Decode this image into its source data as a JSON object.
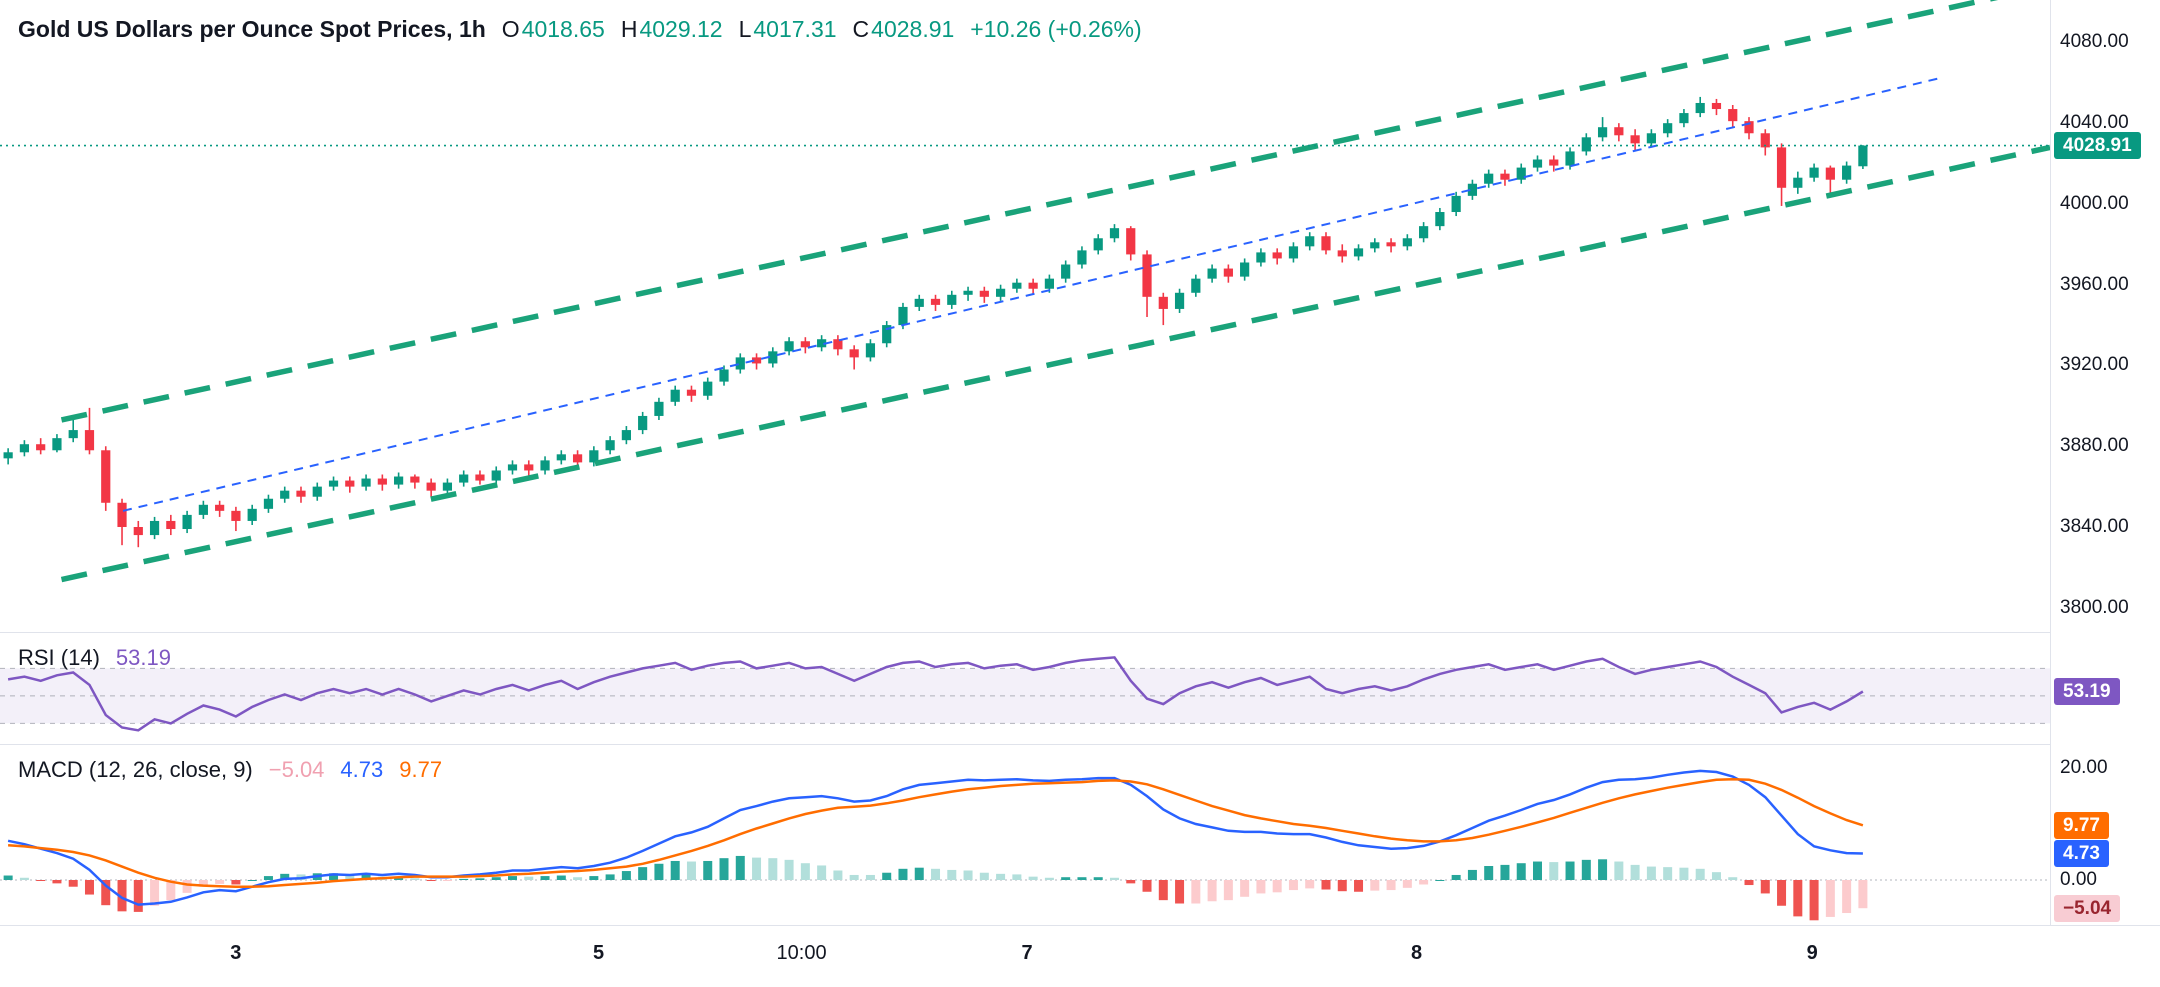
{
  "header": {
    "title": "Gold US Dollars per Ounce Spot Prices, 1h",
    "ohlc": {
      "open_label": "O",
      "open": "4018.65",
      "high_label": "H",
      "high": "4029.12",
      "low_label": "L",
      "low": "4017.31",
      "close_label": "C",
      "close": "4028.91",
      "change": "+10.26 (+0.26%)"
    }
  },
  "rsi_legend": {
    "label": "RSI (14)",
    "value": "53.19"
  },
  "macd_legend": {
    "label": "MACD (12, 26, close, 9)",
    "hist": "−5.04",
    "macd": "4.73",
    "signal": "9.77"
  },
  "price_axis": {
    "ticks": [
      {
        "label": "4080.00",
        "price": 4080
      },
      {
        "label": "4040.00",
        "price": 4040
      },
      {
        "label": "4000.00",
        "price": 4000
      },
      {
        "label": "3960.00",
        "price": 3960
      },
      {
        "label": "3920.00",
        "price": 3920
      },
      {
        "label": "3880.00",
        "price": 3880
      },
      {
        "label": "3840.00",
        "price": 3840
      },
      {
        "label": "3800.00",
        "price": 3800
      }
    ],
    "badge": {
      "label": "4028.91",
      "value": 4028.91,
      "bg": "#089981",
      "fg": "#ffffff"
    }
  },
  "rsi_axis": {
    "badge": {
      "label": "53.19",
      "value": 53.19,
      "bg": "#7e57c2",
      "fg": "#ffffff"
    }
  },
  "macd_axis": {
    "ticks": [
      {
        "label": "20.00",
        "value": 20
      },
      {
        "label": "0.00",
        "value": 0
      }
    ],
    "badges": [
      {
        "label": "9.77",
        "value": 9.77,
        "bg": "#ff6d00",
        "fg": "#ffffff"
      },
      {
        "label": "4.73",
        "value": 4.73,
        "bg": "#2962ff",
        "fg": "#ffffff"
      },
      {
        "label": "−5.04",
        "value": -5.04,
        "bg": "#f8ccd3",
        "fg": "#99252f"
      }
    ]
  },
  "time_axis": {
    "labels": [
      {
        "text": "3",
        "xf": 0.115,
        "strong": true
      },
      {
        "text": "5",
        "xf": 0.292,
        "strong": true
      },
      {
        "text": "10:00",
        "xf": 0.391,
        "strong": false
      },
      {
        "text": "7",
        "xf": 0.501,
        "strong": true
      },
      {
        "text": "8",
        "xf": 0.691,
        "strong": true
      },
      {
        "text": "9",
        "xf": 0.884,
        "strong": true
      }
    ]
  },
  "colors": {
    "up": "#089981",
    "down": "#f23645",
    "channel": "#1aa37a",
    "trend": "#2962ff",
    "last_price": "#089981",
    "rsi_line": "#7e57c2",
    "rsi_band": "rgba(126,87,194,0.09)",
    "rsi_level": "#787b86",
    "macd_line": "#2962ff",
    "macd_signal": "#ff6d00",
    "hist_up": "#26a69a",
    "hist_up_fade": "#b2dfdb",
    "hist_down": "#ef5350",
    "hist_down_fade": "#fccbcd",
    "separator": "#e0e3eb",
    "text": "#131722"
  },
  "chart_data": [
    {
      "type": "candlestick",
      "title": "Gold US Dollars per Ounce Spot Prices, 1h",
      "last": {
        "open": 4018.65,
        "high": 4029.12,
        "low": 4017.31,
        "close": 4028.91,
        "change": 10.26,
        "change_pct": 0.26
      },
      "ylim": [
        3788,
        4101
      ],
      "y_ticks": [
        4080,
        4040,
        4000,
        3960,
        3920,
        3880,
        3840,
        3800
      ],
      "candles": [
        [
          3874,
          3879,
          3871,
          3877
        ],
        [
          3877,
          3883,
          3875,
          3881
        ],
        [
          3881,
          3884,
          3876,
          3878
        ],
        [
          3878,
          3886,
          3877,
          3884
        ],
        [
          3884,
          3893,
          3882,
          3888
        ],
        [
          3888,
          3899,
          3876,
          3878
        ],
        [
          3878,
          3880,
          3848,
          3852
        ],
        [
          3852,
          3854,
          3831,
          3840
        ],
        [
          3840,
          3843,
          3830,
          3836
        ],
        [
          3836,
          3845,
          3834,
          3843
        ],
        [
          3843,
          3846,
          3836,
          3839
        ],
        [
          3839,
          3848,
          3837,
          3846
        ],
        [
          3846,
          3853,
          3844,
          3851
        ],
        [
          3851,
          3853,
          3845,
          3848
        ],
        [
          3848,
          3850,
          3838,
          3843
        ],
        [
          3843,
          3851,
          3841,
          3849
        ],
        [
          3849,
          3856,
          3847,
          3854
        ],
        [
          3854,
          3860,
          3852,
          3858
        ],
        [
          3858,
          3860,
          3852,
          3855
        ],
        [
          3855,
          3862,
          3853,
          3860
        ],
        [
          3860,
          3865,
          3858,
          3863
        ],
        [
          3863,
          3865,
          3857,
          3860
        ],
        [
          3860,
          3866,
          3858,
          3864
        ],
        [
          3864,
          3866,
          3858,
          3861
        ],
        [
          3861,
          3867,
          3859,
          3865
        ],
        [
          3865,
          3866,
          3859,
          3862
        ],
        [
          3862,
          3864,
          3855,
          3858
        ],
        [
          3858,
          3864,
          3856,
          3862
        ],
        [
          3862,
          3868,
          3860,
          3866
        ],
        [
          3866,
          3868,
          3861,
          3863
        ],
        [
          3863,
          3870,
          3861,
          3868
        ],
        [
          3868,
          3873,
          3866,
          3871
        ],
        [
          3871,
          3873,
          3865,
          3868
        ],
        [
          3868,
          3875,
          3866,
          3873
        ],
        [
          3873,
          3878,
          3871,
          3876
        ],
        [
          3876,
          3878,
          3869,
          3872
        ],
        [
          3872,
          3880,
          3870,
          3878
        ],
        [
          3878,
          3885,
          3876,
          3883
        ],
        [
          3883,
          3890,
          3881,
          3888
        ],
        [
          3888,
          3897,
          3886,
          3895
        ],
        [
          3895,
          3904,
          3893,
          3902
        ],
        [
          3902,
          3910,
          3900,
          3908
        ],
        [
          3908,
          3910,
          3902,
          3905
        ],
        [
          3905,
          3914,
          3903,
          3912
        ],
        [
          3912,
          3920,
          3910,
          3918
        ],
        [
          3918,
          3926,
          3916,
          3924
        ],
        [
          3924,
          3926,
          3918,
          3921
        ],
        [
          3921,
          3929,
          3919,
          3927
        ],
        [
          3927,
          3934,
          3925,
          3932
        ],
        [
          3932,
          3934,
          3926,
          3929
        ],
        [
          3929,
          3935,
          3927,
          3933
        ],
        [
          3933,
          3935,
          3925,
          3928
        ],
        [
          3928,
          3930,
          3918,
          3924
        ],
        [
          3924,
          3933,
          3922,
          3931
        ],
        [
          3931,
          3942,
          3929,
          3940
        ],
        [
          3940,
          3951,
          3938,
          3949
        ],
        [
          3949,
          3955,
          3947,
          3953
        ],
        [
          3953,
          3955,
          3947,
          3950
        ],
        [
          3950,
          3957,
          3948,
          3955
        ],
        [
          3955,
          3959,
          3952,
          3957
        ],
        [
          3957,
          3959,
          3951,
          3954
        ],
        [
          3954,
          3960,
          3952,
          3958
        ],
        [
          3958,
          3963,
          3956,
          3961
        ],
        [
          3961,
          3963,
          3955,
          3958
        ],
        [
          3958,
          3965,
          3956,
          3963
        ],
        [
          3963,
          3972,
          3961,
          3970
        ],
        [
          3970,
          3979,
          3968,
          3977
        ],
        [
          3977,
          3985,
          3975,
          3983
        ],
        [
          3983,
          3990,
          3981,
          3988
        ],
        [
          3988,
          3989,
          3972,
          3975
        ],
        [
          3975,
          3977,
          3944,
          3954
        ],
        [
          3954,
          3956,
          3940,
          3948
        ],
        [
          3948,
          3958,
          3946,
          3956
        ],
        [
          3956,
          3965,
          3954,
          3963
        ],
        [
          3963,
          3970,
          3961,
          3968
        ],
        [
          3968,
          3970,
          3961,
          3964
        ],
        [
          3964,
          3973,
          3962,
          3971
        ],
        [
          3971,
          3978,
          3969,
          3976
        ],
        [
          3976,
          3978,
          3970,
          3973
        ],
        [
          3973,
          3981,
          3971,
          3979
        ],
        [
          3979,
          3986,
          3977,
          3984
        ],
        [
          3984,
          3986,
          3975,
          3977
        ],
        [
          3977,
          3980,
          3971,
          3974
        ],
        [
          3974,
          3980,
          3972,
          3978
        ],
        [
          3978,
          3983,
          3976,
          3981
        ],
        [
          3981,
          3983,
          3976,
          3979
        ],
        [
          3979,
          3985,
          3977,
          3983
        ],
        [
          3983,
          3991,
          3981,
          3989
        ],
        [
          3989,
          3998,
          3987,
          3996
        ],
        [
          3996,
          4006,
          3994,
          4004
        ],
        [
          4004,
          4012,
          4002,
          4010
        ],
        [
          4010,
          4017,
          4008,
          4015
        ],
        [
          4015,
          4017,
          4009,
          4012
        ],
        [
          4012,
          4020,
          4010,
          4018
        ],
        [
          4018,
          4024,
          4016,
          4022
        ],
        [
          4022,
          4024,
          4016,
          4019
        ],
        [
          4019,
          4028,
          4017,
          4026
        ],
        [
          4026,
          4035,
          4024,
          4033
        ],
        [
          4033,
          4043,
          4031,
          4038
        ],
        [
          4038,
          4040,
          4031,
          4034
        ],
        [
          4034,
          4037,
          4026,
          4030
        ],
        [
          4030,
          4037,
          4028,
          4035
        ],
        [
          4035,
          4042,
          4033,
          4040
        ],
        [
          4040,
          4047,
          4038,
          4045
        ],
        [
          4045,
          4053,
          4043,
          4050
        ],
        [
          4050,
          4052,
          4044,
          4047
        ],
        [
          4047,
          4049,
          4038,
          4041
        ],
        [
          4041,
          4043,
          4032,
          4035
        ],
        [
          4035,
          4037,
          4024,
          4028
        ],
        [
          4028,
          4030,
          3999,
          4008
        ],
        [
          4008,
          4016,
          4005,
          4013
        ],
        [
          4013,
          4020,
          4011,
          4018
        ],
        [
          4018,
          4019,
          4005,
          4012
        ],
        [
          4012,
          4021,
          4010,
          4019
        ],
        [
          4018.65,
          4029.12,
          4017.31,
          4028.91
        ]
      ],
      "overlays": [
        {
          "name": "channel-upper",
          "color": "#1aa37a",
          "width": 5.5,
          "dash": "26 16",
          "from": {
            "xf": 0.03,
            "price": 3893
          },
          "to": {
            "xf": 1.0,
            "price": 4108
          }
        },
        {
          "name": "channel-lower",
          "color": "#1aa37a",
          "width": 5.5,
          "dash": "26 16",
          "from": {
            "xf": 0.03,
            "price": 3814
          },
          "to": {
            "xf": 1.0,
            "price": 4028
          }
        },
        {
          "name": "trendline-mid",
          "color": "#2962ff",
          "width": 2,
          "dash": "9 7",
          "from": {
            "xf": 0.06,
            "price": 3848
          },
          "to": {
            "xf": 0.945,
            "price": 4062
          }
        },
        {
          "name": "last-price-line",
          "color": "#089981",
          "width": 1.6,
          "dash": "2 4",
          "horizontal_price": 4028.91
        }
      ]
    },
    {
      "type": "line",
      "name": "RSI (14)",
      "ylim": [
        15,
        96.5
      ],
      "levels": [
        70,
        50,
        30
      ],
      "band": [
        30,
        70
      ],
      "last": 53.19,
      "values": [
        62,
        64,
        61,
        65,
        67,
        58,
        36,
        27,
        25,
        33,
        30,
        37,
        43,
        40,
        35,
        42,
        47,
        51,
        47,
        52,
        55,
        52,
        55,
        51,
        55,
        51,
        46,
        50,
        54,
        51,
        55,
        58,
        54,
        58,
        61,
        55,
        60,
        64,
        67,
        70,
        72,
        74,
        69,
        72,
        74,
        75,
        70,
        72,
        74,
        70,
        71,
        66,
        61,
        66,
        71,
        74,
        75,
        71,
        73,
        74,
        70,
        72,
        73,
        69,
        71,
        74,
        76,
        77,
        78,
        61,
        48,
        44,
        52,
        57,
        60,
        56,
        60,
        63,
        58,
        61,
        64,
        55,
        52,
        55,
        57,
        54,
        57,
        62,
        66,
        69,
        71,
        73,
        69,
        71,
        73,
        69,
        72,
        75,
        77,
        71,
        66,
        69,
        71,
        73,
        75,
        71,
        64,
        58,
        52,
        38,
        42,
        45,
        40,
        46,
        53.19
      ]
    },
    {
      "type": "macd",
      "name": "MACD (12, 26, close, 9)",
      "ylim": [
        -8.04,
        24.3
      ],
      "last": {
        "macd": 4.73,
        "signal": 9.77,
        "hist": -5.04
      },
      "macd": [
        7,
        6.4,
        5.6,
        4.8,
        3.8,
        1.8,
        -1,
        -3.2,
        -4.4,
        -4.2,
        -3.9,
        -3.1,
        -2.2,
        -1.8,
        -2,
        -1.2,
        -0.4,
        0.2,
        0.3,
        0.7,
        1,
        0.9,
        1.1,
        0.9,
        1.1,
        0.9,
        0.5,
        0.5,
        0.8,
        1,
        1.3,
        1.7,
        1.7,
        2,
        2.3,
        2.1,
        2.5,
        3.1,
        4,
        5.2,
        6.5,
        7.8,
        8.5,
        9.5,
        11,
        12.5,
        13.2,
        14,
        14.6,
        14.8,
        15,
        14.6,
        14,
        14.2,
        15,
        16.2,
        17,
        17.3,
        17.6,
        17.9,
        17.8,
        17.9,
        18,
        17.8,
        17.7,
        17.9,
        18,
        18.2,
        18.2,
        17,
        15,
        12.6,
        11,
        10,
        9.4,
        8.8,
        8.6,
        8.6,
        8.3,
        8.2,
        8.2,
        7.6,
        6.8,
        6.2,
        5.9,
        5.6,
        5.7,
        6.1,
        6.9,
        8,
        9.3,
        10.6,
        11.5,
        12.5,
        13.6,
        14.3,
        15.3,
        16.5,
        17.5,
        17.9,
        18,
        18.3,
        18.8,
        19.2,
        19.5,
        19.3,
        18.5,
        17,
        14.8,
        11.5,
        8.2,
        6,
        5.3,
        4.8,
        4.73
      ],
      "signal": [
        6.2,
        6,
        5.7,
        5.4,
        5,
        4.4,
        3.5,
        2.4,
        1.3,
        0.4,
        -0.3,
        -0.8,
        -1,
        -1.1,
        -1.2,
        -1.2,
        -1.1,
        -0.9,
        -0.7,
        -0.5,
        -0.2,
        0,
        0.2,
        0.3,
        0.5,
        0.6,
        0.6,
        0.6,
        0.6,
        0.7,
        0.8,
        1,
        1.1,
        1.3,
        1.5,
        1.6,
        1.8,
        2.1,
        2.4,
        2.9,
        3.6,
        4.4,
        5.2,
        6.1,
        7.1,
        8.2,
        9.2,
        10.1,
        11,
        11.8,
        12.4,
        12.9,
        13.1,
        13.3,
        13.7,
        14.2,
        14.8,
        15.3,
        15.8,
        16.2,
        16.5,
        16.8,
        17,
        17.2,
        17.3,
        17.4,
        17.5,
        17.7,
        17.8,
        17.6,
        17.1,
        16.2,
        15.2,
        14.2,
        13.2,
        12.4,
        11.6,
        11,
        10.5,
        10,
        9.7,
        9.3,
        8.8,
        8.3,
        7.8,
        7.4,
        7.1,
        6.9,
        6.9,
        7.1,
        7.5,
        8.1,
        8.8,
        9.5,
        10.3,
        11.1,
        12,
        12.9,
        13.8,
        14.6,
        15.3,
        15.9,
        16.5,
        17,
        17.5,
        17.9,
        18,
        17.9,
        17.2,
        16.1,
        14.7,
        13.2,
        11.9,
        10.7,
        9.77
      ]
    }
  ]
}
